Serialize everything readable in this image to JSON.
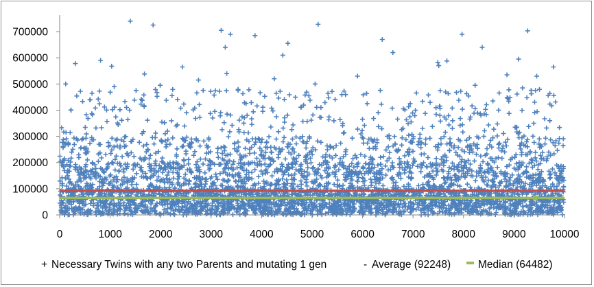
{
  "chart_data": {
    "type": "scatter",
    "title": "",
    "xlabel": "",
    "ylabel": "",
    "xlim": [
      0,
      10000
    ],
    "ylim": [
      0,
      750000
    ],
    "x_ticks": [
      0,
      1000,
      2000,
      3000,
      4000,
      5000,
      6000,
      7000,
      8000,
      9000,
      10000
    ],
    "y_ticks": [
      0,
      100000,
      200000,
      300000,
      400000,
      500000,
      600000,
      700000
    ],
    "x_tick_labels": [
      "0",
      "1000",
      "2000",
      "3000",
      "4000",
      "5000",
      "6000",
      "7000",
      "8000",
      "9000",
      "10000"
    ],
    "y_tick_labels": [
      "0",
      "100000",
      "200000",
      "300000",
      "400000",
      "500000",
      "600000",
      "700000"
    ],
    "grid": false,
    "legend_position": "bottom",
    "series": [
      {
        "name": "Necessary Twins with any two Parents and mutating 1 gen",
        "kind": "scatter",
        "marker": "+",
        "color": "#4F81BD",
        "count": 10000,
        "distribution_note_values": {
          "median": 64482,
          "mean": 92248
        },
        "highlighted_points": [
          {
            "x": 1400,
            "y": 740000
          },
          {
            "x": 1850,
            "y": 725000
          },
          {
            "x": 5120,
            "y": 728000
          },
          {
            "x": 3200,
            "y": 705000
          },
          {
            "x": 3380,
            "y": 690000
          },
          {
            "x": 9270,
            "y": 703000
          },
          {
            "x": 3870,
            "y": 685000
          },
          {
            "x": 7970,
            "y": 690000
          },
          {
            "x": 6390,
            "y": 670000
          },
          {
            "x": 3280,
            "y": 640000
          },
          {
            "x": 4520,
            "y": 655000
          },
          {
            "x": 8370,
            "y": 640000
          },
          {
            "x": 6600,
            "y": 620000
          },
          {
            "x": 4420,
            "y": 610000
          },
          {
            "x": 9090,
            "y": 595000
          },
          {
            "x": 810,
            "y": 590000
          },
          {
            "x": 7670,
            "y": 588000
          },
          {
            "x": 7490,
            "y": 582000
          },
          {
            "x": 310,
            "y": 578000
          },
          {
            "x": 2430,
            "y": 565000
          },
          {
            "x": 1030,
            "y": 568000
          },
          {
            "x": 9780,
            "y": 565000
          },
          {
            "x": 7510,
            "y": 570000
          },
          {
            "x": 3310,
            "y": 540000
          },
          {
            "x": 1680,
            "y": 538000
          },
          {
            "x": 5900,
            "y": 530000
          },
          {
            "x": 8860,
            "y": 535000
          },
          {
            "x": 9450,
            "y": 530000
          },
          {
            "x": 4250,
            "y": 520000
          },
          {
            "x": 2750,
            "y": 515000
          },
          {
            "x": 120,
            "y": 500000
          },
          {
            "x": 5060,
            "y": 500000
          },
          {
            "x": 1080,
            "y": 490000
          },
          {
            "x": 1990,
            "y": 495000
          },
          {
            "x": 9170,
            "y": 485000
          },
          {
            "x": 8230,
            "y": 495000
          }
        ]
      },
      {
        "name": "Average (92248)",
        "kind": "hline",
        "value": 92248,
        "color": "#C0504D"
      },
      {
        "name": "Median (64482)",
        "kind": "hline",
        "value": 64482,
        "color": "#9BBB59",
        "marker_at_x": 9420
      }
    ]
  },
  "legend": {
    "items": [
      {
        "symbol": "+",
        "label": "Necessary Twins with any two Parents and mutating 1 gen",
        "color": "#4F81BD"
      },
      {
        "symbol": "-",
        "label": "Average (92248)",
        "color": "#C0504D"
      },
      {
        "symbol": "line",
        "label": "Median (64482)",
        "color": "#9BBB59"
      }
    ]
  }
}
